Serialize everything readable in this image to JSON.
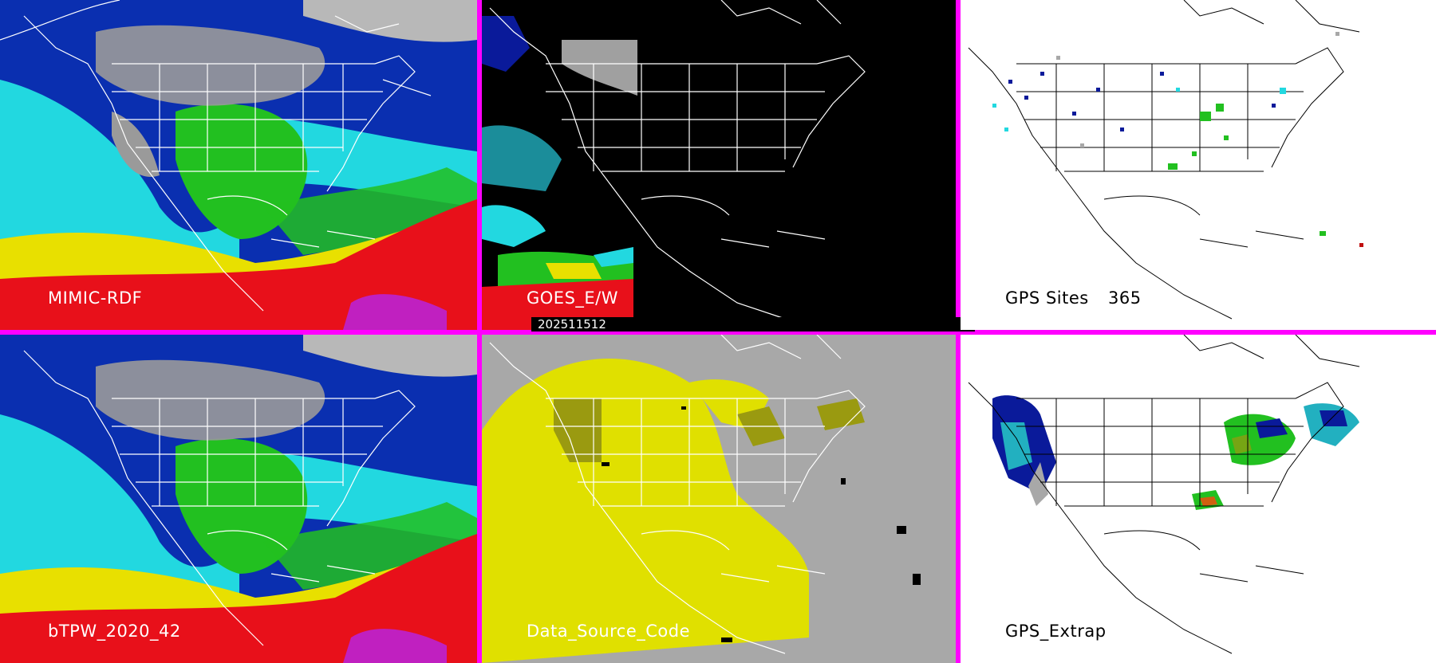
{
  "panels": {
    "mimic_rdf": {
      "label": "MIMIC-RDF",
      "background": "#0a2fb0"
    },
    "goes": {
      "label": "GOES_E/W",
      "background": "#000000"
    },
    "gps_sites": {
      "label": "GPS Sites",
      "count": "365",
      "background": "#ffffff"
    },
    "btpw": {
      "label": "bTPW_2020_42",
      "background": "#0a2fb0"
    },
    "data_source": {
      "label": "Data_Source_Code",
      "background": "#a8a8a8"
    },
    "gps_extrap": {
      "label": "GPS_Extrap",
      "background": "#ffffff"
    }
  },
  "timestamp": "202511512",
  "colors": {
    "divider": "#ff00ff",
    "tpw_dark_blue": "#0a1a9a",
    "tpw_blue": "#1f4fe0",
    "tpw_cyan": "#22d8e0",
    "tpw_green": "#22c020",
    "tpw_yellow": "#e8e000",
    "tpw_red": "#e8101a",
    "tpw_magenta": "#c020c0",
    "cloud_gray": "#9a9a9a",
    "source_yellow": "#e0e000",
    "source_olive": "#9a9a10"
  }
}
